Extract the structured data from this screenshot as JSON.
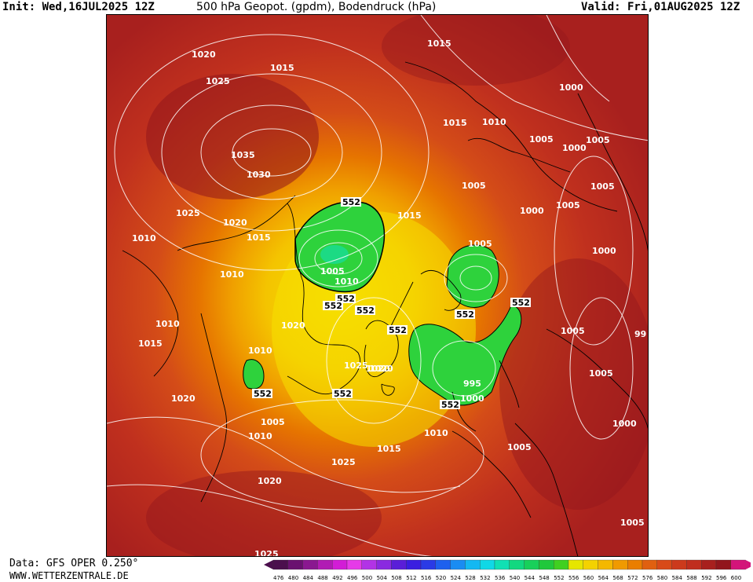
{
  "header": {
    "init": "Init: Wed,16JUL2025 12Z",
    "title": "500 hPa Geopot. (gpdm), Bodendruck (hPa)",
    "valid": "Valid: Fri,01AUG2025 12Z"
  },
  "footer": {
    "data_source": "Data: GFS OPER 0.250°",
    "website": "WWW.WETTERZENTRALE.DE"
  },
  "scale": {
    "values": [
      "476",
      "480",
      "484",
      "488",
      "492",
      "496",
      "500",
      "504",
      "508",
      "512",
      "516",
      "520",
      "524",
      "528",
      "532",
      "536",
      "540",
      "544",
      "548",
      "552",
      "556",
      "560",
      "564",
      "568",
      "572",
      "576",
      "580",
      "584",
      "588",
      "592",
      "596",
      "600"
    ],
    "colors": [
      "#4b0f4d",
      "#6a1170",
      "#8a1890",
      "#b11bb4",
      "#d21dd6",
      "#e63ae8",
      "#b233e6",
      "#8a2ae0",
      "#5a1ed8",
      "#3a1ee0",
      "#2a3ae6",
      "#1e60ee",
      "#1a8cf2",
      "#14b8f2",
      "#10d8e6",
      "#10e0b4",
      "#12d880",
      "#18d05a",
      "#20c83c",
      "#40d020",
      "#e6e600",
      "#f4d200",
      "#f4b800",
      "#f09a00",
      "#ea7e00",
      "#e06010",
      "#d84a18",
      "#cc3a1c",
      "#c02e1e",
      "#a8201e",
      "#92161c",
      "#d4147a"
    ]
  },
  "pressure_labels": [
    "1020",
    "1015",
    "1025",
    "1015",
    "1035",
    "1030",
    "1025",
    "1020",
    "1015",
    "1010",
    "1010",
    "1010",
    "1015",
    "1020",
    "1005",
    "1010",
    "1015",
    "1010",
    "1005",
    "1000",
    "1005",
    "1000",
    "1005",
    "1005",
    "1000",
    "1005",
    "1000",
    "1005",
    "995",
    "1000",
    "1005",
    "1010",
    "1015",
    "1025",
    "1020",
    "1020",
    "1025",
    "1020",
    "1005",
    "1010",
    "1015",
    "1010",
    "1005",
    "1000",
    "1025",
    "1020",
    "1005",
    "1005",
    "99"
  ],
  "geopot_labels": [
    "552",
    "552",
    "552",
    "552",
    "552",
    "552",
    "552",
    "552",
    "552",
    "552"
  ]
}
